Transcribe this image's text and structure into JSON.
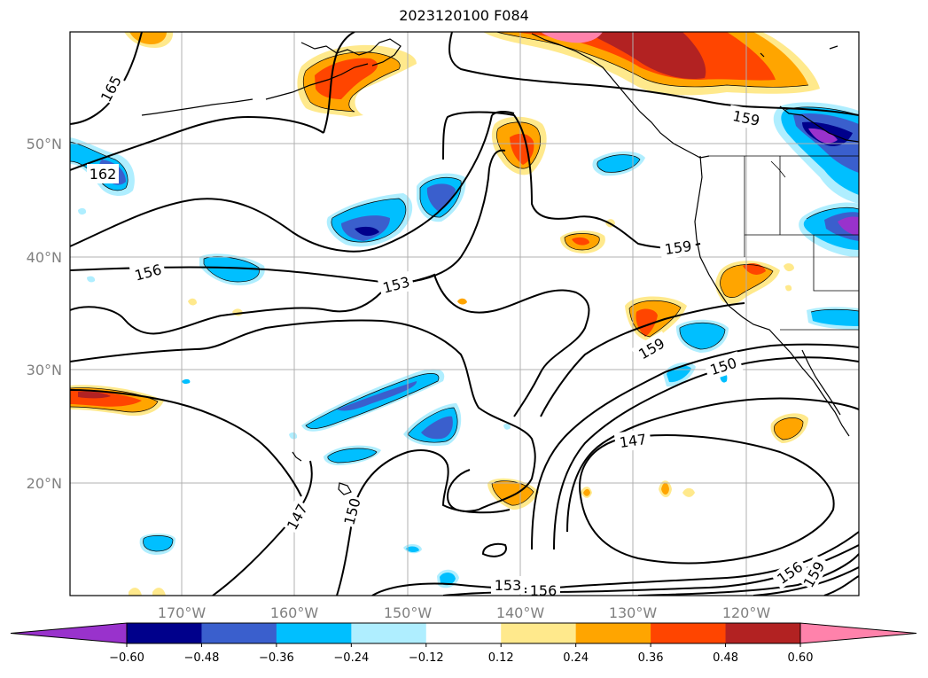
{
  "title": "2023120100 F084",
  "lat_labels": [
    "50°N",
    "40°N",
    "30°N",
    "20°N"
  ],
  "lon_labels": [
    "170°W",
    "160°W",
    "150°W",
    "140°W",
    "130°W",
    "120°W"
  ],
  "contour_labels": [
    "165",
    "162",
    "156",
    "153",
    "159",
    "159",
    "159",
    "150",
    "147",
    "147",
    "150",
    "153",
    "156",
    "156",
    "159"
  ],
  "colorbar": {
    "ticks": [
      "−0.60",
      "−0.48",
      "−0.36",
      "−0.24",
      "−0.12",
      "0.12",
      "0.24",
      "0.36",
      "0.48",
      "0.60"
    ],
    "colors": [
      "#9932cc",
      "#00008b",
      "#3a5fcd",
      "#00bfff",
      "#afeeff",
      "#ffffff",
      "#ffe98c",
      "#ffa500",
      "#ff4500",
      "#b22222",
      "#ff82ab"
    ]
  }
}
